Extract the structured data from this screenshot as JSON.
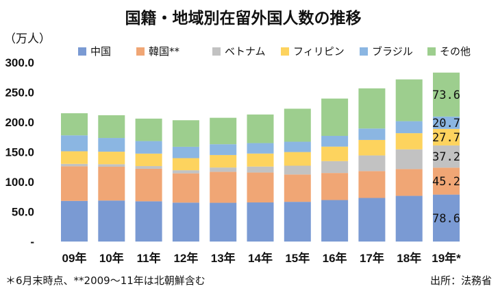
{
  "chart_data": {
    "type": "bar",
    "stacked": true,
    "title": "国籍・地域別在留外国人数の推移",
    "unit_label": "（万人）",
    "categories": [
      "09年",
      "10年",
      "11年",
      "12年",
      "13年",
      "14年",
      "15年",
      "16年",
      "17年",
      "18年",
      "19年*"
    ],
    "y_ticks": [
      "300.0",
      "250.0",
      "200.0",
      "150.0",
      "100.0",
      "50.0",
      "-"
    ],
    "ylim": [
      0,
      300
    ],
    "legend_position": "top",
    "grid": false,
    "series": [
      {
        "name": "中国",
        "color": "#7A9AD3",
        "values": [
          68.1,
          68.7,
          67.4,
          65.2,
          64.9,
          65.5,
          66.5,
          69.5,
          73.0,
          76.5,
          78.6
        ]
      },
      {
        "name": "韓国**",
        "color": "#F0A675",
        "values": [
          57.9,
          56.6,
          54.5,
          49.0,
          51.9,
          50.1,
          45.8,
          45.3,
          45.0,
          44.9,
          45.2
        ]
      },
      {
        "name": "ベトナム",
        "color": "#C2C2C2",
        "values": [
          4.1,
          4.2,
          4.5,
          5.2,
          7.2,
          10.0,
          14.7,
          19.9,
          26.2,
          33.0,
          37.2
        ]
      },
      {
        "name": "フィリピン",
        "color": "#FDD35E",
        "values": [
          21.1,
          21.0,
          20.9,
          20.3,
          20.9,
          21.8,
          22.9,
          24.3,
          26.0,
          27.1,
          27.7
        ]
      },
      {
        "name": "ブラジル",
        "color": "#8BB6E2",
        "values": [
          26.7,
          23.0,
          21.0,
          19.0,
          18.1,
          17.5,
          17.3,
          18.0,
          19.1,
          20.1,
          20.7
        ]
      },
      {
        "name": "その他",
        "color": "#9DCE8E",
        "values": [
          37.0,
          38.1,
          37.6,
          44.5,
          44.3,
          47.9,
          55.3,
          62.5,
          67.3,
          70.0,
          73.6
        ]
      }
    ],
    "data_labels": {
      "category": "19年*",
      "values": [
        "78.6",
        "45.2",
        "37.2",
        "27.7",
        "20.7",
        "73.6"
      ]
    }
  },
  "footer": {
    "note": "＊6月末時点、**2009～11年は北朝鮮含む",
    "source": "出所：法務省"
  }
}
